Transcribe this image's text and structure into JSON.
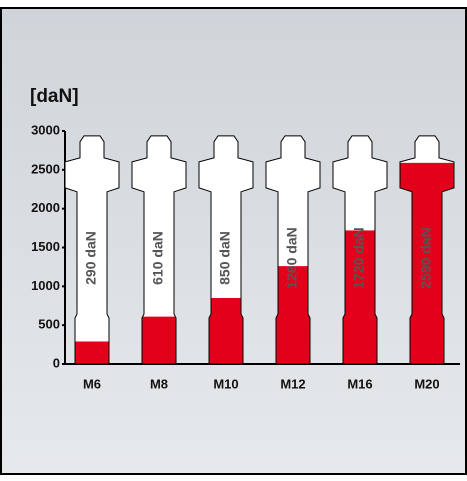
{
  "chart_data": {
    "type": "bar",
    "title": "[daN]",
    "categories": [
      "M6",
      "M8",
      "M10",
      "M12",
      "M16",
      "M20"
    ],
    "values": [
      290,
      610,
      850,
      1260,
      1720,
      2590
    ],
    "value_labels": [
      "290 daN",
      "610 daN",
      "850 daN",
      "1260 daN",
      "1720 daN",
      "2590 daN"
    ],
    "color": "#e3001b",
    "ylim": [
      0,
      3000
    ],
    "yticks": [
      0,
      500,
      1000,
      1500,
      2000,
      2500,
      3000
    ]
  }
}
